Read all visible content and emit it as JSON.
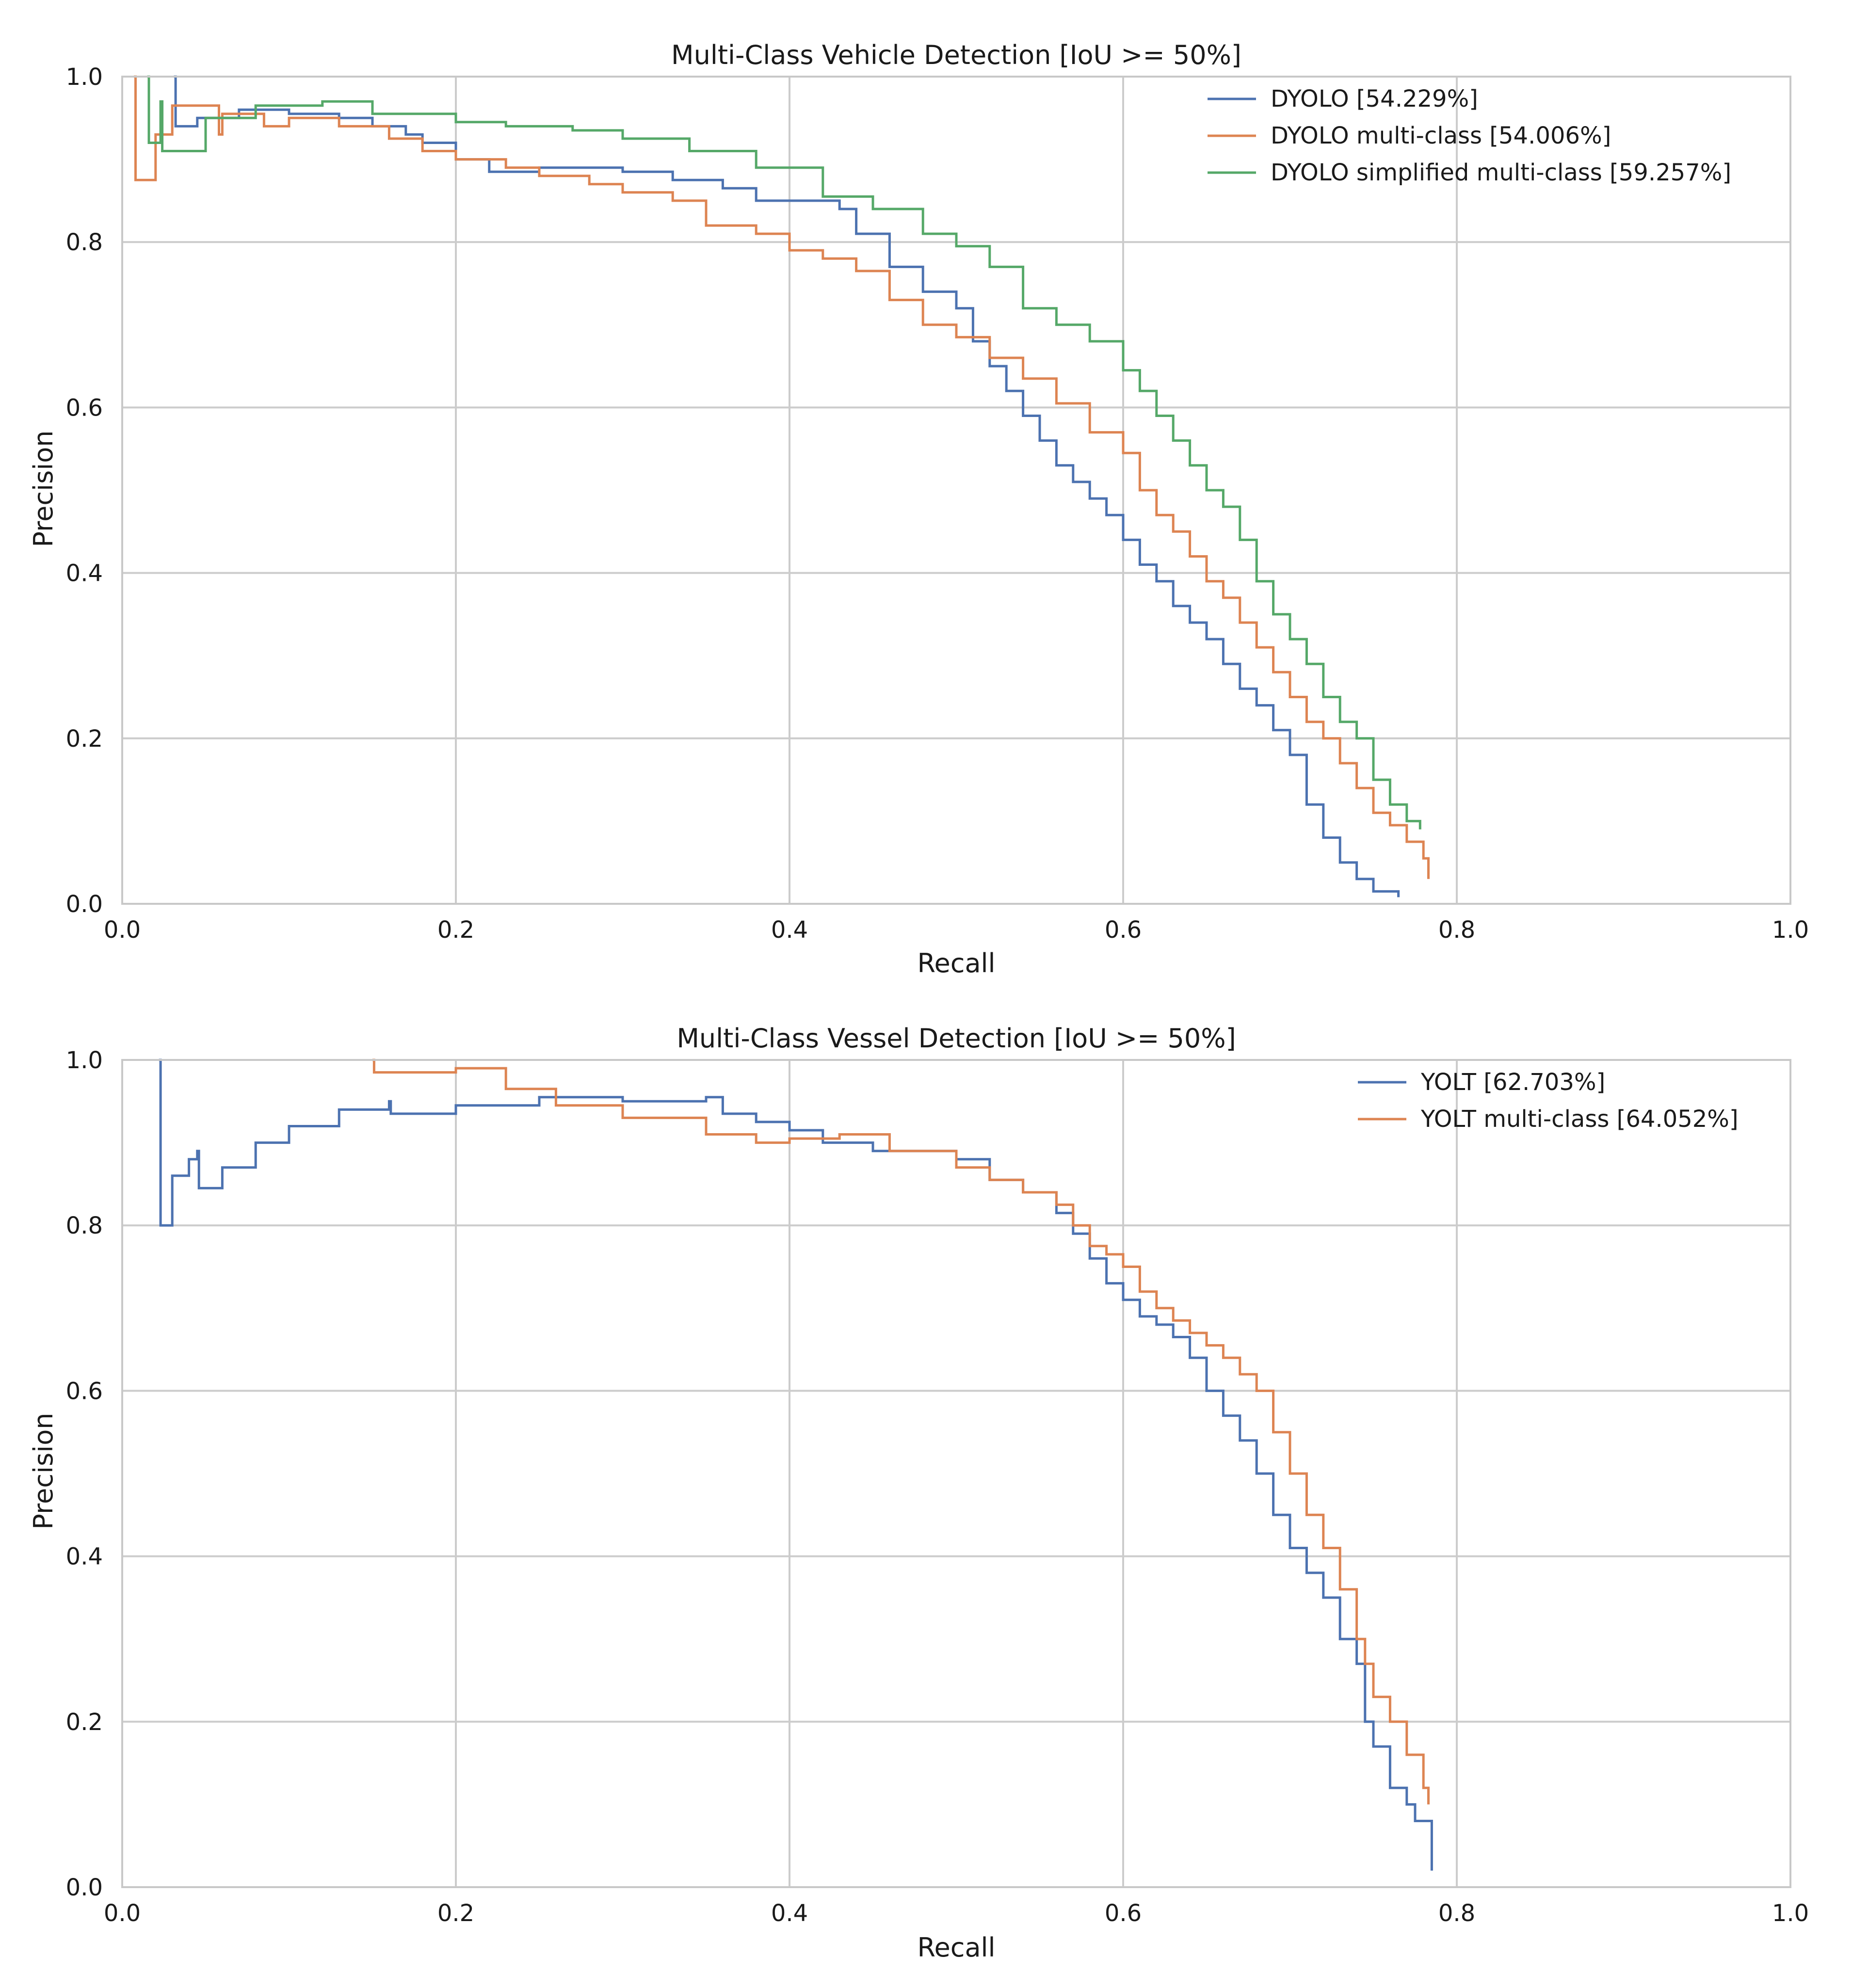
{
  "chart_data": [
    {
      "type": "line",
      "title": "Multi-Class Vehicle Detection [IoU >= 50%]",
      "xlabel": "Recall",
      "ylabel": "Precision",
      "xlim": [
        0.0,
        1.0
      ],
      "ylim": [
        0.0,
        1.0
      ],
      "xticks": [
        "0.0",
        "0.2",
        "0.4",
        "0.6",
        "0.8",
        "1.0"
      ],
      "yticks": [
        "0.0",
        "0.2",
        "0.4",
        "0.6",
        "0.8",
        "1.0"
      ],
      "grid": true,
      "legend_position": "top-right",
      "series": [
        {
          "name": "DYOLO [54.229%]",
          "color": "#4c72b0",
          "x": [
            0.031,
            0.032,
            0.045,
            0.07,
            0.1,
            0.13,
            0.15,
            0.17,
            0.18,
            0.2,
            0.22,
            0.25,
            0.28,
            0.3,
            0.33,
            0.36,
            0.38,
            0.4,
            0.42,
            0.43,
            0.44,
            0.46,
            0.48,
            0.5,
            0.51,
            0.52,
            0.53,
            0.54,
            0.55,
            0.56,
            0.57,
            0.58,
            0.59,
            0.6,
            0.61,
            0.62,
            0.63,
            0.64,
            0.65,
            0.66,
            0.67,
            0.68,
            0.69,
            0.7,
            0.71,
            0.72,
            0.73,
            0.74,
            0.75,
            0.765
          ],
          "y": [
            1.0,
            0.94,
            0.95,
            0.96,
            0.955,
            0.95,
            0.94,
            0.93,
            0.92,
            0.9,
            0.885,
            0.89,
            0.89,
            0.885,
            0.875,
            0.865,
            0.85,
            0.85,
            0.85,
            0.84,
            0.81,
            0.77,
            0.74,
            0.72,
            0.68,
            0.65,
            0.62,
            0.59,
            0.56,
            0.53,
            0.51,
            0.49,
            0.47,
            0.44,
            0.41,
            0.39,
            0.36,
            0.34,
            0.32,
            0.29,
            0.26,
            0.24,
            0.21,
            0.18,
            0.12,
            0.08,
            0.05,
            0.03,
            0.015,
            0.008
          ]
        },
        {
          "name": "DYOLO multi-class [54.006%]",
          "color": "#dd8452",
          "x": [
            0.007,
            0.008,
            0.02,
            0.03,
            0.058,
            0.06,
            0.085,
            0.1,
            0.13,
            0.16,
            0.18,
            0.2,
            0.23,
            0.25,
            0.28,
            0.3,
            0.33,
            0.35,
            0.38,
            0.4,
            0.42,
            0.44,
            0.46,
            0.48,
            0.5,
            0.52,
            0.54,
            0.56,
            0.58,
            0.6,
            0.61,
            0.62,
            0.63,
            0.64,
            0.65,
            0.66,
            0.67,
            0.68,
            0.69,
            0.7,
            0.71,
            0.72,
            0.73,
            0.74,
            0.75,
            0.76,
            0.77,
            0.78,
            0.783
          ],
          "y": [
            1.0,
            0.875,
            0.93,
            0.965,
            0.93,
            0.955,
            0.94,
            0.95,
            0.94,
            0.925,
            0.91,
            0.9,
            0.89,
            0.88,
            0.87,
            0.86,
            0.85,
            0.82,
            0.81,
            0.79,
            0.78,
            0.765,
            0.73,
            0.7,
            0.685,
            0.66,
            0.635,
            0.605,
            0.57,
            0.545,
            0.5,
            0.47,
            0.45,
            0.42,
            0.39,
            0.37,
            0.34,
            0.31,
            0.28,
            0.25,
            0.22,
            0.2,
            0.17,
            0.14,
            0.11,
            0.095,
            0.075,
            0.055,
            0.03
          ]
        },
        {
          "name": "DYOLO simplified multi-class [59.257%]",
          "color": "#55a868",
          "x": [
            0.015,
            0.016,
            0.023,
            0.024,
            0.05,
            0.08,
            0.12,
            0.15,
            0.2,
            0.23,
            0.27,
            0.3,
            0.34,
            0.38,
            0.42,
            0.45,
            0.48,
            0.5,
            0.52,
            0.54,
            0.56,
            0.58,
            0.6,
            0.61,
            0.62,
            0.63,
            0.64,
            0.65,
            0.66,
            0.67,
            0.68,
            0.69,
            0.7,
            0.71,
            0.72,
            0.73,
            0.74,
            0.75,
            0.76,
            0.77,
            0.778
          ],
          "y": [
            1.0,
            0.92,
            0.97,
            0.91,
            0.95,
            0.965,
            0.97,
            0.955,
            0.945,
            0.94,
            0.935,
            0.925,
            0.91,
            0.89,
            0.855,
            0.84,
            0.81,
            0.795,
            0.77,
            0.72,
            0.7,
            0.68,
            0.645,
            0.62,
            0.59,
            0.56,
            0.53,
            0.5,
            0.48,
            0.44,
            0.39,
            0.35,
            0.32,
            0.29,
            0.25,
            0.22,
            0.2,
            0.15,
            0.12,
            0.1,
            0.09
          ]
        }
      ]
    },
    {
      "type": "line",
      "title": "Multi-Class Vessel Detection [IoU >= 50%]",
      "xlabel": "Recall",
      "ylabel": "Precision",
      "xlim": [
        0.0,
        1.0
      ],
      "ylim": [
        0.0,
        1.0
      ],
      "xticks": [
        "0.0",
        "0.2",
        "0.4",
        "0.6",
        "0.8",
        "1.0"
      ],
      "yticks": [
        "0.0",
        "0.2",
        "0.4",
        "0.6",
        "0.8",
        "1.0"
      ],
      "grid": true,
      "legend_position": "top-right",
      "series": [
        {
          "name": "YOLT [62.703%]",
          "color": "#4c72b0",
          "x": [
            0.022,
            0.023,
            0.03,
            0.04,
            0.045,
            0.046,
            0.06,
            0.08,
            0.1,
            0.13,
            0.16,
            0.161,
            0.2,
            0.25,
            0.3,
            0.35,
            0.36,
            0.38,
            0.4,
            0.42,
            0.45,
            0.5,
            0.52,
            0.54,
            0.56,
            0.57,
            0.58,
            0.59,
            0.6,
            0.61,
            0.62,
            0.63,
            0.64,
            0.65,
            0.66,
            0.67,
            0.68,
            0.69,
            0.7,
            0.71,
            0.72,
            0.73,
            0.74,
            0.745,
            0.75,
            0.76,
            0.77,
            0.775,
            0.785
          ],
          "y": [
            1.0,
            0.8,
            0.86,
            0.88,
            0.89,
            0.845,
            0.87,
            0.9,
            0.92,
            0.94,
            0.95,
            0.935,
            0.945,
            0.955,
            0.95,
            0.955,
            0.935,
            0.925,
            0.915,
            0.9,
            0.89,
            0.88,
            0.855,
            0.84,
            0.815,
            0.79,
            0.76,
            0.73,
            0.71,
            0.69,
            0.68,
            0.665,
            0.64,
            0.6,
            0.57,
            0.54,
            0.5,
            0.45,
            0.41,
            0.38,
            0.35,
            0.3,
            0.27,
            0.2,
            0.17,
            0.12,
            0.1,
            0.08,
            0.02
          ]
        },
        {
          "name": "YOLT multi-class [64.052%]",
          "color": "#dd8452",
          "x": [
            0.15,
            0.151,
            0.2,
            0.23,
            0.26,
            0.3,
            0.35,
            0.38,
            0.4,
            0.43,
            0.46,
            0.5,
            0.52,
            0.54,
            0.56,
            0.57,
            0.58,
            0.59,
            0.6,
            0.61,
            0.62,
            0.63,
            0.64,
            0.65,
            0.66,
            0.67,
            0.68,
            0.69,
            0.7,
            0.71,
            0.72,
            0.73,
            0.74,
            0.745,
            0.75,
            0.76,
            0.77,
            0.78,
            0.783
          ],
          "y": [
            1.0,
            0.985,
            0.99,
            0.965,
            0.945,
            0.93,
            0.91,
            0.9,
            0.905,
            0.91,
            0.89,
            0.87,
            0.855,
            0.84,
            0.825,
            0.8,
            0.775,
            0.765,
            0.75,
            0.72,
            0.7,
            0.685,
            0.67,
            0.655,
            0.64,
            0.62,
            0.6,
            0.55,
            0.5,
            0.45,
            0.41,
            0.36,
            0.3,
            0.27,
            0.23,
            0.2,
            0.16,
            0.12,
            0.1
          ]
        }
      ]
    }
  ]
}
